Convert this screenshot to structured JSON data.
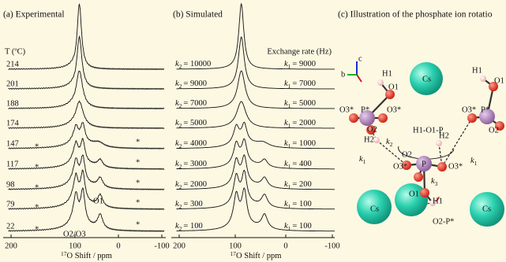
{
  "panels": [
    {
      "title": "(a) Experimental",
      "row_header": "T (ºC)",
      "rows": [
        "214",
        "201",
        "188",
        "174",
        "147",
        "117",
        "98",
        "79",
        "22"
      ],
      "asterisk": "*",
      "peak_labels": [
        "O2/O3",
        "O1"
      ],
      "ticks": [
        "200",
        "100",
        "0",
        "-100"
      ],
      "axis_label": {
        "isotope": "17",
        "text": "O Shift / ppm"
      }
    },
    {
      "title": "(b) Simulated",
      "header": "Exchange rate (Hz)",
      "k": "k",
      "k2_sub": "2",
      "k1_sub": "1",
      "k2": [
        "= 10000",
        "= 9000",
        "= 7000",
        "= 5000",
        "= 4000",
        "= 3000",
        "= 2000",
        "= 300",
        "= 100"
      ],
      "k1": [
        "= 9000",
        "= 7000",
        "= 5000",
        "= 2000",
        "= 1000",
        "= 400",
        "= 200",
        "= 100",
        "= 100"
      ],
      "ticks": [
        "200",
        "100",
        "0",
        "-100"
      ],
      "axis_label": {
        "isotope": "17",
        "text": "O Shift / ppm"
      }
    },
    {
      "title": "(c) Illustration of the phosphate ion rotatio",
      "axes": [
        "c",
        "b"
      ],
      "labels": [
        "H1",
        "O1",
        "Cs",
        "H1",
        "O1",
        "O3*",
        "P*",
        "O3*",
        "O2",
        "H1-O1-P",
        "O3*",
        "P*",
        "O2",
        "H2",
        "H2",
        "O3*",
        "P",
        "O3*",
        "O2",
        "O1",
        "H1",
        "O2-P*",
        "Cs",
        "Cs"
      ],
      "k_labels": [
        {
          "text": "k",
          "sub": "2"
        },
        {
          "text": "k",
          "sub": "1"
        },
        {
          "text": "k",
          "sub": "1"
        },
        {
          "text": "k",
          "sub": "3"
        }
      ]
    }
  ]
}
